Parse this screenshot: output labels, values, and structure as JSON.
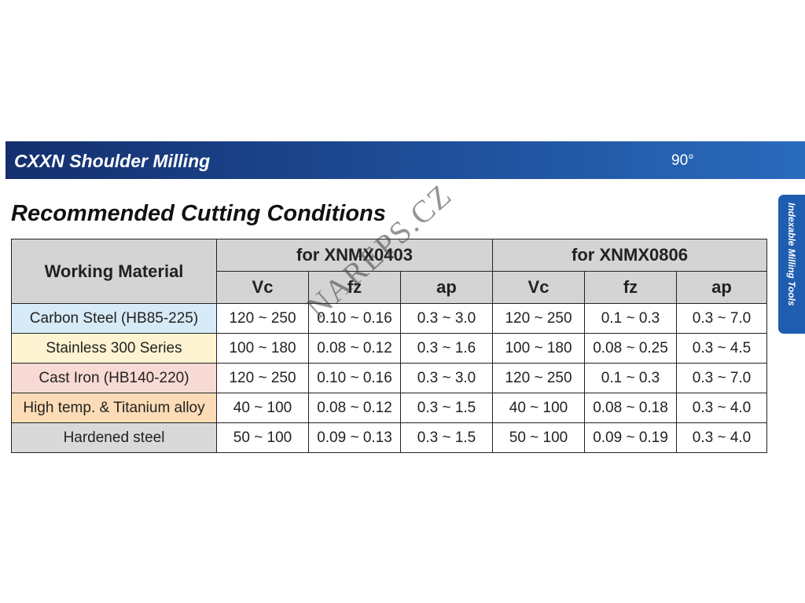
{
  "banner": {
    "title": "CXXN Shoulder Milling",
    "angle": "90°"
  },
  "side_tab": "Indexable Milling Tools",
  "heading": "Recommended Cutting Conditions",
  "watermark": "NAREPS.CZ",
  "table": {
    "header": {
      "material": "Working Material",
      "groups": [
        "for XNMX0403",
        "for XNMX0806"
      ],
      "columns": [
        "Vc",
        "fz",
        "ap",
        "Vc",
        "fz",
        "ap"
      ]
    },
    "rows": [
      [
        "Carbon Steel (HB85-225)",
        "120 ~ 250",
        "0.10 ~ 0.16",
        "0.3 ~ 3.0",
        "120 ~ 250",
        "0.1 ~ 0.3",
        "0.3 ~ 7.0"
      ],
      [
        "Stainless 300 Series",
        "100 ~ 180",
        "0.08 ~ 0.12",
        "0.3 ~ 1.6",
        "100 ~ 180",
        "0.08 ~ 0.25",
        "0.3 ~ 4.5"
      ],
      [
        "Cast Iron (HB140-220)",
        "120 ~ 250",
        "0.10 ~ 0.16",
        "0.3 ~ 3.0",
        "120 ~ 250",
        "0.1 ~ 0.3",
        "0.3 ~ 7.0"
      ],
      [
        "High temp. & Titanium alloy",
        "40 ~ 100",
        "0.08 ~ 0.12",
        "0.3 ~ 1.5",
        "40 ~ 100",
        "0.08 ~ 0.18",
        "0.3 ~ 4.0"
      ],
      [
        "Hardened steel",
        "50 ~ 100",
        "0.09 ~ 0.13",
        "0.3 ~ 1.5",
        "50 ~ 100",
        "0.09 ~ 0.19",
        "0.3 ~ 4.0"
      ]
    ]
  }
}
